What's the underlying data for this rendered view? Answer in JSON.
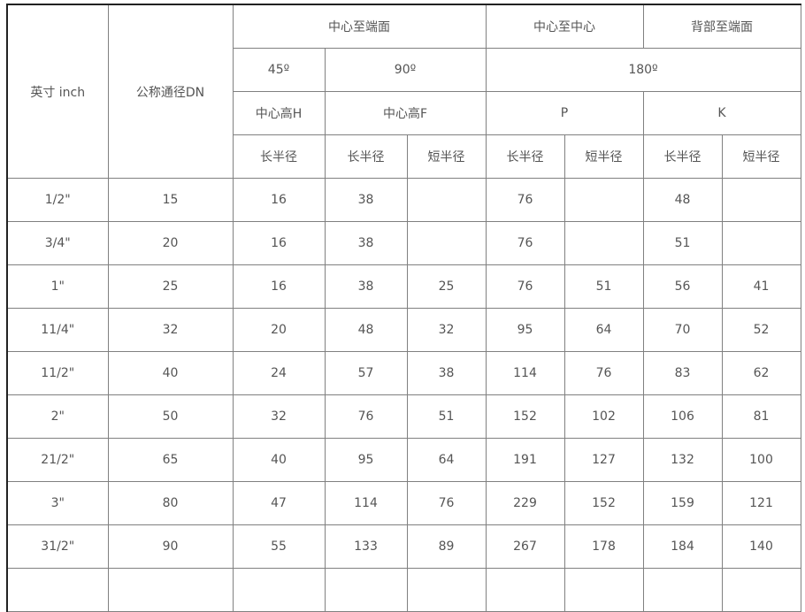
{
  "header": {
    "inch": "英寸 inch",
    "dn": "公称通径DN",
    "center_to_end": "中心至端面",
    "center_to_center": "中心至中心",
    "back_to_end": "背部至端面",
    "deg45": "45º",
    "deg90": "90º",
    "deg180": "180º",
    "center_h": "中心高H",
    "center_f": "中心高F",
    "p": "P",
    "k": "K",
    "long_radius": "长半径",
    "short_radius": "短半径"
  },
  "rows": [
    [
      "1/2\"",
      "15",
      "16",
      "38",
      "",
      "76",
      "",
      "48",
      ""
    ],
    [
      "3/4\"",
      "20",
      "16",
      "38",
      "",
      "76",
      "",
      "51",
      ""
    ],
    [
      "1\"",
      "25",
      "16",
      "38",
      "25",
      "76",
      "51",
      "56",
      "41"
    ],
    [
      "11/4\"",
      "32",
      "20",
      "48",
      "32",
      "95",
      "64",
      "70",
      "52"
    ],
    [
      "11/2\"",
      "40",
      "24",
      "57",
      "38",
      "114",
      "76",
      "83",
      "62"
    ],
    [
      "2\"",
      "50",
      "32",
      "76",
      "51",
      "152",
      "102",
      "106",
      "81"
    ],
    [
      "21/2\"",
      "65",
      "40",
      "95",
      "64",
      "191",
      "127",
      "132",
      "100"
    ],
    [
      "3\"",
      "80",
      "47",
      "114",
      "76",
      "229",
      "152",
      "159",
      "121"
    ],
    [
      "31/2\"",
      "90",
      "55",
      "133",
      "89",
      "267",
      "178",
      "184",
      "140"
    ],
    [
      "",
      "",
      "",
      "",
      "",
      "",
      "",
      "",
      ""
    ]
  ]
}
